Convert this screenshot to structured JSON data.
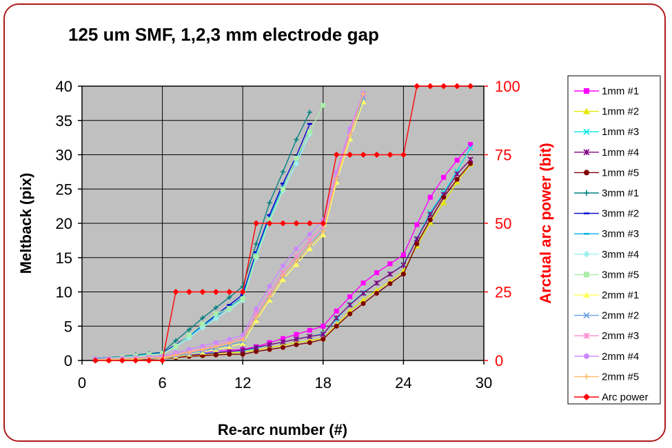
{
  "chart_data": {
    "type": "line",
    "title": "125 um SMF, 1,2,3 mm electrode gap",
    "xlabel": "Re-arc number (#)",
    "ylabel": "Meltback (pix)",
    "y2label": "Arctual arc power (bit)",
    "xlim": [
      0,
      30
    ],
    "ylim": [
      0,
      40
    ],
    "y2lim": [
      0,
      100
    ],
    "xticks": [
      0,
      6,
      12,
      18,
      24,
      30
    ],
    "yticks": [
      0,
      5,
      10,
      15,
      20,
      25,
      30,
      35,
      40
    ],
    "y2ticks": [
      0,
      25,
      50,
      75,
      100
    ],
    "grid": true,
    "plot_background": "#c0c0c0",
    "legend_position": "right",
    "series": [
      {
        "name": "1mm #1",
        "color": "#ff00ff",
        "marker": "square",
        "axis": "left",
        "x": [
          1,
          2,
          3,
          4,
          5,
          6,
          7,
          8,
          9,
          10,
          11,
          12,
          13,
          14,
          15,
          16,
          17,
          18,
          19,
          20,
          21,
          22,
          23,
          24,
          25,
          26,
          27,
          28,
          29
        ],
        "values": [
          0.2,
          0.2,
          0.3,
          0.3,
          0.4,
          0.5,
          0.7,
          0.9,
          1.1,
          1.3,
          1.5,
          1.6,
          2.0,
          2.6,
          3.2,
          3.8,
          4.4,
          5.0,
          7.2,
          9.3,
          11.3,
          12.8,
          14.1,
          15.4,
          19.8,
          23.8,
          26.7,
          29.2,
          31.5
        ]
      },
      {
        "name": "1mm #2",
        "color": "#e6e600",
        "marker": "triangle",
        "axis": "left",
        "x": [
          1,
          2,
          3,
          4,
          5,
          6,
          7,
          8,
          9,
          10,
          11,
          12,
          13,
          14,
          15,
          16,
          17,
          18,
          19,
          20,
          21,
          22,
          23,
          24,
          25,
          26,
          27,
          28,
          29
        ],
        "values": [
          0.1,
          0.1,
          0.2,
          0.2,
          0.2,
          0.3,
          0.5,
          0.7,
          0.8,
          1.0,
          1.1,
          1.2,
          1.5,
          1.9,
          2.2,
          2.6,
          2.9,
          3.2,
          5.2,
          7.2,
          8.8,
          10.2,
          11.5,
          13.0,
          16.7,
          20.1,
          23.0,
          26.0,
          28.6
        ]
      },
      {
        "name": "1mm #3",
        "color": "#00e6e6",
        "marker": "x",
        "axis": "left",
        "x": [
          1,
          2,
          3,
          4,
          5,
          6,
          7,
          8,
          9,
          10,
          11,
          12,
          13,
          14,
          15,
          16,
          17,
          18,
          19,
          20,
          21,
          22,
          23,
          24,
          25,
          26,
          27,
          28,
          29
        ],
        "values": [
          0.2,
          0.2,
          0.3,
          0.3,
          0.4,
          0.4,
          0.6,
          0.8,
          1.0,
          1.2,
          1.3,
          1.4,
          1.8,
          2.3,
          2.7,
          3.1,
          3.5,
          3.9,
          6.0,
          8.2,
          9.9,
          11.3,
          12.6,
          14.0,
          17.8,
          21.6,
          24.5,
          27.6,
          31.0
        ]
      },
      {
        "name": "1mm #4",
        "color": "#800080",
        "marker": "star",
        "axis": "left",
        "x": [
          1,
          2,
          3,
          4,
          5,
          6,
          7,
          8,
          9,
          10,
          11,
          12,
          13,
          14,
          15,
          16,
          17,
          18,
          19,
          20,
          21,
          22,
          23,
          24,
          25,
          26,
          27,
          28,
          29
        ],
        "values": [
          0.2,
          0.2,
          0.2,
          0.3,
          0.3,
          0.4,
          0.6,
          0.8,
          0.9,
          1.1,
          1.3,
          1.5,
          1.9,
          2.3,
          2.7,
          3.1,
          3.5,
          3.8,
          6.2,
          8.1,
          9.8,
          11.3,
          12.6,
          13.9,
          17.7,
          21.3,
          24.2,
          27.2,
          29.3
        ]
      },
      {
        "name": "1mm #5",
        "color": "#800000",
        "marker": "circle",
        "axis": "left",
        "x": [
          1,
          2,
          3,
          4,
          5,
          6,
          7,
          8,
          9,
          10,
          11,
          12,
          13,
          14,
          15,
          16,
          17,
          18,
          19,
          20,
          21,
          22,
          23,
          24,
          25,
          26,
          27,
          28,
          29
        ],
        "values": [
          0.1,
          0.1,
          0.2,
          0.2,
          0.2,
          0.3,
          0.4,
          0.6,
          0.7,
          0.8,
          0.9,
          0.9,
          1.3,
          1.6,
          1.9,
          2.3,
          2.6,
          3.1,
          5.0,
          6.8,
          8.3,
          9.8,
          11.2,
          12.6,
          17.0,
          20.5,
          23.8,
          26.4,
          28.7
        ]
      },
      {
        "name": "3mm #1",
        "color": "#008080",
        "marker": "plus",
        "axis": "left",
        "x": [
          1,
          2,
          3,
          4,
          5,
          6,
          7,
          8,
          9,
          10,
          11,
          12,
          13,
          14,
          15,
          16,
          17
        ],
        "values": [
          0.3,
          0.4,
          0.6,
          0.8,
          1.0,
          1.2,
          2.9,
          4.5,
          6.2,
          7.7,
          9.2,
          10.8,
          17.0,
          23.0,
          27.5,
          32.2,
          36.2
        ]
      },
      {
        "name": "3mm #2",
        "color": "#0000cc",
        "marker": "dash",
        "axis": "left",
        "x": [
          1,
          2,
          3,
          4,
          5,
          6,
          7,
          8,
          9,
          10,
          11,
          12,
          13,
          14,
          15,
          16,
          17
        ],
        "values": [
          0.3,
          0.4,
          0.5,
          0.7,
          0.9,
          1.1,
          2.3,
          3.6,
          5.2,
          6.6,
          8.1,
          9.6,
          15.8,
          21.2,
          25.8,
          29.8,
          34.5
        ]
      },
      {
        "name": "3mm #3",
        "color": "#00b0e6",
        "marker": "dash",
        "axis": "left",
        "x": [
          1,
          2,
          3,
          4,
          5,
          6,
          7,
          8,
          9,
          10,
          11,
          12,
          13,
          14,
          15,
          16,
          17
        ],
        "values": [
          0.3,
          0.4,
          0.5,
          0.7,
          0.9,
          1.0,
          2.2,
          3.5,
          5.0,
          6.4,
          7.8,
          9.2,
          15.5,
          20.8,
          25.3,
          29.2,
          33.5
        ]
      },
      {
        "name": "3mm #4",
        "color": "#a0f0f0",
        "marker": "diamond",
        "axis": "left",
        "x": [
          1,
          2,
          3,
          4,
          5,
          6,
          7,
          8,
          9,
          10,
          11,
          12,
          13,
          14,
          15,
          16,
          17
        ],
        "values": [
          0.2,
          0.3,
          0.5,
          0.6,
          0.8,
          1.0,
          2.0,
          3.3,
          4.8,
          6.1,
          7.4,
          8.8,
          15.0,
          20.3,
          24.8,
          28.7,
          33.0
        ]
      },
      {
        "name": "3mm #5",
        "color": "#aaeeaa",
        "marker": "square",
        "axis": "left",
        "x": [
          1,
          2,
          3,
          4,
          5,
          6,
          7,
          8,
          9,
          10,
          11,
          12,
          13,
          14,
          15,
          16,
          17,
          18
        ],
        "values": [
          0.2,
          0.3,
          0.5,
          0.6,
          0.8,
          1.0,
          2.1,
          3.7,
          5.3,
          6.8,
          7.6,
          9.0,
          15.2,
          20.5,
          25.0,
          29.5,
          33.3,
          37.2
        ]
      },
      {
        "name": "2mm #1",
        "color": "#ffff66",
        "marker": "triangle",
        "axis": "left",
        "x": [
          1,
          2,
          3,
          4,
          5,
          6,
          7,
          8,
          9,
          10,
          11,
          12,
          13,
          14,
          15,
          16,
          17,
          18,
          19,
          20,
          21
        ],
        "values": [
          0.1,
          0.1,
          0.2,
          0.2,
          0.3,
          0.3,
          0.6,
          0.9,
          1.2,
          1.6,
          2.0,
          2.5,
          5.8,
          8.8,
          11.8,
          14.0,
          16.3,
          18.3,
          26.0,
          32.3,
          37.7
        ]
      },
      {
        "name": "2mm #2",
        "color": "#66a0e6",
        "marker": "x",
        "axis": "left",
        "x": [
          1,
          2,
          3,
          4,
          5,
          6,
          7,
          8,
          9,
          10,
          11,
          12,
          13,
          14,
          15,
          16,
          17,
          18,
          19,
          20,
          21
        ],
        "values": [
          0.1,
          0.2,
          0.2,
          0.3,
          0.3,
          0.4,
          0.7,
          1.0,
          1.4,
          1.8,
          2.3,
          2.8,
          6.3,
          9.3,
          12.3,
          14.6,
          16.9,
          19.0,
          26.6,
          33.0,
          38.3
        ]
      },
      {
        "name": "2mm #3",
        "color": "#ff88cc",
        "marker": "star",
        "axis": "left",
        "x": [
          1,
          2,
          3,
          4,
          5,
          6,
          7,
          8,
          9,
          10,
          11,
          12,
          13,
          14,
          15,
          16,
          17,
          18,
          19,
          20,
          21
        ],
        "values": [
          0.2,
          0.2,
          0.3,
          0.3,
          0.4,
          0.5,
          0.9,
          1.3,
          1.7,
          2.2,
          2.7,
          3.3,
          6.8,
          9.8,
          12.8,
          15.2,
          17.5,
          19.5,
          27.0,
          33.4,
          38.8
        ]
      },
      {
        "name": "2mm #4",
        "color": "#cc88ff",
        "marker": "circle",
        "axis": "left",
        "x": [
          1,
          2,
          3,
          4,
          5,
          6,
          7,
          8,
          9,
          10,
          11,
          12,
          13,
          14,
          15,
          16,
          17,
          18,
          19,
          20,
          21
        ],
        "values": [
          0.2,
          0.3,
          0.3,
          0.4,
          0.5,
          0.6,
          1.1,
          1.6,
          2.1,
          2.6,
          3.1,
          3.7,
          7.5,
          10.8,
          13.8,
          16.3,
          18.4,
          20.5,
          27.5,
          33.8,
          39.0
        ]
      },
      {
        "name": "2mm #5",
        "color": "#ffbb66",
        "marker": "plus",
        "axis": "left",
        "x": [
          1,
          2,
          3,
          4,
          5,
          6,
          7,
          8,
          9,
          10,
          11,
          12,
          13,
          14,
          15,
          16,
          17,
          18,
          19,
          20,
          21
        ],
        "values": [
          0.1,
          0.2,
          0.2,
          0.3,
          0.4,
          0.4,
          0.8,
          1.2,
          1.6,
          2.0,
          2.5,
          3.0,
          6.2,
          9.2,
          12.3,
          14.5,
          16.8,
          18.8,
          26.5,
          32.8,
          38.9
        ]
      },
      {
        "name": "Arc power",
        "color": "#ff0000",
        "marker": "diamond",
        "axis": "right",
        "x": [
          1,
          2,
          3,
          4,
          5,
          6,
          7,
          8,
          9,
          10,
          11,
          12,
          13,
          14,
          15,
          16,
          17,
          18,
          19,
          20,
          21,
          22,
          23,
          24,
          25,
          26,
          27,
          28,
          29
        ],
        "values": [
          0,
          0,
          0,
          0,
          0,
          0,
          25,
          25,
          25,
          25,
          25,
          25,
          50,
          50,
          50,
          50,
          50,
          50,
          75,
          75,
          75,
          75,
          75,
          75,
          100,
          100,
          100,
          100,
          100
        ]
      }
    ]
  }
}
